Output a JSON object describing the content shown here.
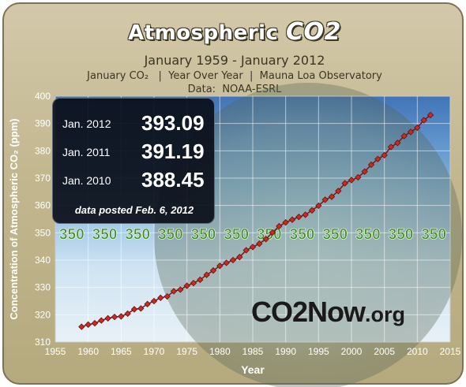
{
  "header": {
    "title_main": "Atmospheric ",
    "title_co2": "CO2",
    "date_range": "January 1959 - January 2012",
    "info_line": "January CO₂   |  Year Over Year  |  Mauna Loa Observatory",
    "source": "Data:  NOAA-ESRL"
  },
  "infobox": {
    "rows": [
      {
        "label": "Jan. 2012",
        "value": "393.09"
      },
      {
        "label": "Jan. 2011",
        "value": "391.19"
      },
      {
        "label": "Jan. 2010",
        "value": "388.45"
      }
    ],
    "note": "data posted Feb. 6, 2012"
  },
  "brand": {
    "main": "CO2Now",
    "suffix": ".org"
  },
  "colors": {
    "marker_fill": "#cc2a22",
    "marker_edge": "#6a0f0c",
    "line": "#7a1612",
    "ref_label": "#3f8f1b",
    "grid": "#ffffff",
    "axis_text": "#ffffff"
  },
  "chart_data": {
    "type": "line",
    "title": "Atmospheric CO2",
    "subtitle": "January 1959 - January 2012",
    "xlabel": "Year",
    "ylabel": "Concentration of Atmospheric CO₂ (ppm)",
    "xlim": [
      1955,
      2015
    ],
    "ylim": [
      310,
      400
    ],
    "x_ticks": [
      1955,
      1960,
      1965,
      1970,
      1975,
      1980,
      1985,
      1990,
      1995,
      2000,
      2005,
      2010,
      2015
    ],
    "y_ticks": [
      310,
      320,
      330,
      340,
      350,
      360,
      370,
      380,
      390,
      400
    ],
    "grid": true,
    "reference_line": {
      "value": 350,
      "label": "350"
    },
    "series": [
      {
        "x": [
          1959,
          1960,
          1961,
          1962,
          1963,
          1964,
          1965,
          1966,
          1967,
          1968,
          1969,
          1970,
          1971,
          1972,
          1973,
          1974,
          1975,
          1976,
          1977,
          1978,
          1979,
          1980,
          1981,
          1982,
          1983,
          1984,
          1985,
          1986,
          1987,
          1988,
          1989,
          1990,
          1991,
          1992,
          1993,
          1994,
          1995,
          1996,
          1997,
          1998,
          1999,
          2000,
          2001,
          2002,
          2003,
          2004,
          2005,
          2006,
          2007,
          2008,
          2009,
          2010,
          2011,
          2012
        ],
        "values": [
          315.6,
          316.4,
          316.9,
          317.9,
          318.7,
          319.2,
          319.4,
          320.4,
          322.0,
          322.3,
          323.9,
          325.0,
          326.2,
          326.7,
          328.6,
          329.2,
          330.6,
          331.6,
          332.8,
          334.6,
          336.2,
          337.9,
          339.0,
          340.0,
          341.1,
          343.6,
          344.8,
          346.0,
          347.7,
          350.1,
          352.4,
          353.8,
          354.8,
          355.8,
          356.6,
          358.2,
          359.9,
          362.1,
          363.2,
          365.3,
          368.1,
          369.3,
          370.3,
          372.4,
          374.9,
          377.0,
          378.4,
          381.4,
          382.9,
          385.4,
          386.9,
          388.45,
          391.19,
          393.09
        ]
      }
    ]
  }
}
